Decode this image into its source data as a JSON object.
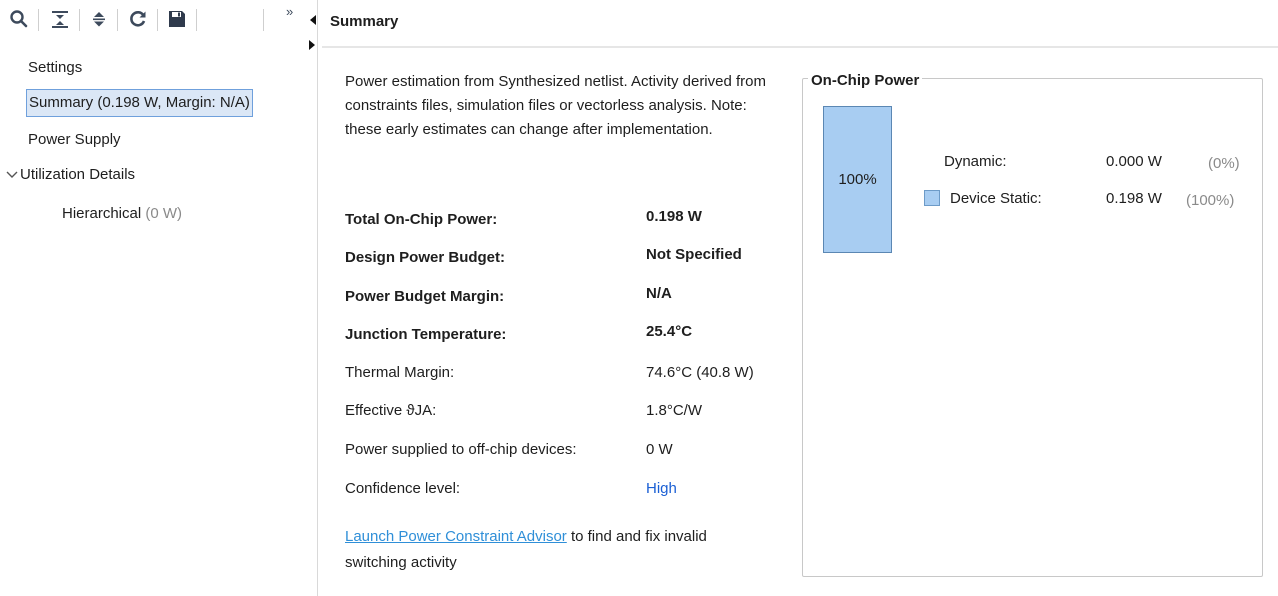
{
  "toolbar": {
    "icons": [
      "search-icon",
      "collapse-all-icon",
      "expand-all-icon",
      "refresh-icon",
      "save-icon",
      "overflow-icon"
    ],
    "overflow_label": "»"
  },
  "nav": {
    "settings": "Settings",
    "summary": "Summary (0.198 W, Margin: N/A)",
    "power_supply": "Power Supply",
    "utilization": "Utilization Details",
    "hierarchical": "Hierarchical",
    "hierarchical_value": "(0 W)"
  },
  "header": {
    "title": "Summary"
  },
  "summary": {
    "description": "Power estimation from Synthesized netlist. Activity derived from constraints files, simulation files or vectorless analysis. Note: these early estimates can change after implementation.",
    "rows": [
      {
        "label": "Total On-Chip Power:",
        "value": "0.198 W"
      },
      {
        "label": "Design Power Budget:",
        "value": "Not Specified"
      },
      {
        "label": "Power Budget Margin:",
        "value": "N/A"
      },
      {
        "label": "Junction Temperature:",
        "value": "25.4°C"
      },
      {
        "label": "Thermal Margin:",
        "value": "74.6°C (40.8 W)"
      },
      {
        "label": "Effective ϑJA:",
        "value": "1.8°C/W"
      },
      {
        "label": "Power supplied to off-chip devices:",
        "value": "0 W"
      },
      {
        "label": "Confidence level:",
        "value": "High"
      }
    ],
    "advisor_link": "Launch Power Constraint Advisor",
    "advisor_text": " to find and fix invalid switching activity"
  },
  "chip_power": {
    "title": "On-Chip Power",
    "bar_label": "100%",
    "dynamic_label": "Dynamic:",
    "dynamic_value": "0.000 W",
    "dynamic_pct": "(0%)",
    "static_label": "Device Static:",
    "static_value": "0.198 W",
    "static_pct": "(100%)",
    "static_color": "#a8cdf2"
  }
}
